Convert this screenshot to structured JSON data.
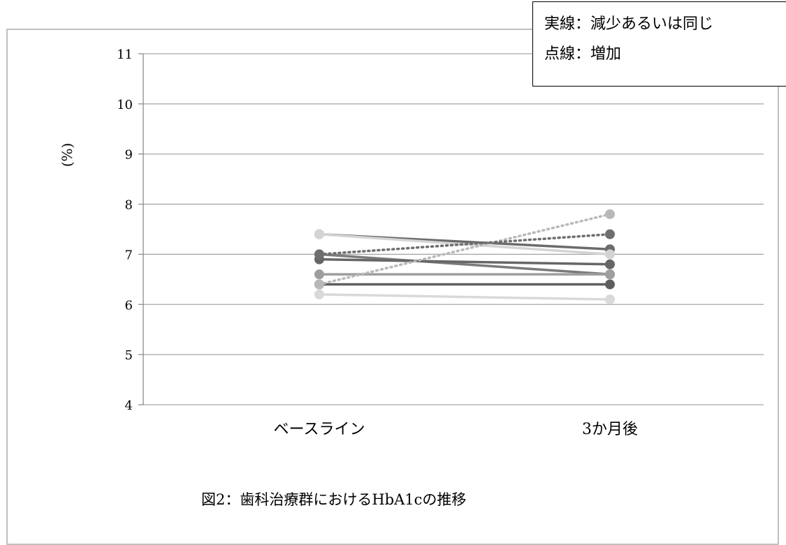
{
  "legend": {
    "solid_line_label": "実線：減少あるいは同じ",
    "dotted_line_label": "点線：増加"
  },
  "caption": "図2：歯科治療群におけるHbA1cの推移",
  "chart_data": {
    "type": "line",
    "title": "図2：歯科治療群におけるHbA1cの推移",
    "xlabel": "",
    "ylabel": "(%)",
    "categories": [
      "ベースライン",
      "3か月後"
    ],
    "ylim": [
      4,
      11
    ],
    "yticks": [
      4,
      5,
      6,
      7,
      8,
      9,
      10,
      11
    ],
    "grid": true,
    "legend_position": "top-right",
    "series": [
      {
        "values": [
          7.4,
          7.1
        ],
        "style": "solid",
        "color": "#6b6b6b"
      },
      {
        "values": [
          7.4,
          7.0
        ],
        "style": "solid",
        "color": "#d4d4d4"
      },
      {
        "values": [
          7.0,
          6.6
        ],
        "style": "solid",
        "color": "#7a7a7a"
      },
      {
        "values": [
          6.9,
          6.8
        ],
        "style": "solid",
        "color": "#666666"
      },
      {
        "values": [
          6.6,
          6.6
        ],
        "style": "solid",
        "color": "#9e9e9e"
      },
      {
        "values": [
          6.4,
          6.4
        ],
        "style": "solid",
        "color": "#5e5e5e"
      },
      {
        "values": [
          6.2,
          6.1
        ],
        "style": "solid",
        "color": "#d9d9d9"
      },
      {
        "values": [
          6.4,
          7.8
        ],
        "style": "dotted",
        "color": "#b8b8b8"
      },
      {
        "values": [
          7.0,
          7.4
        ],
        "style": "dotted",
        "color": "#6e6e6e"
      }
    ]
  }
}
